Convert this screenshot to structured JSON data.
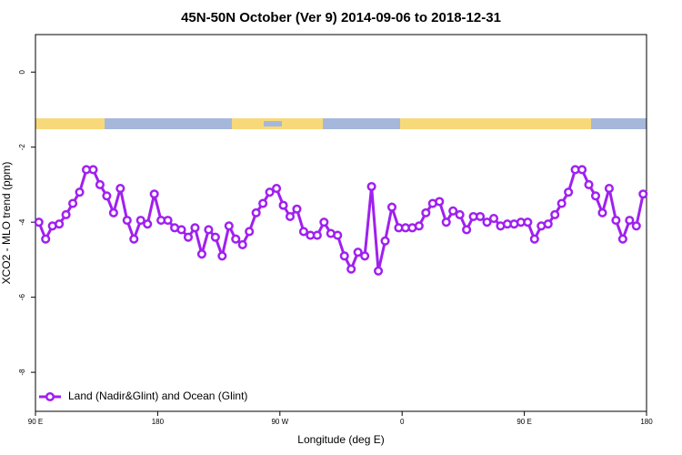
{
  "chart_data": {
    "type": "line",
    "title": "45N-50N October (Ver 9)   2014-09-06 to 2018-12-31",
    "x_label": "Longitude (deg E)",
    "y_label": "XCO2 - MLO trend (ppm)",
    "x": [
      92.5,
      97.5,
      102.5,
      107.5,
      112.5,
      117.5,
      122.5,
      127.5,
      132.5,
      137.5,
      142.5,
      147.5,
      152.5,
      157.5,
      162.5,
      167.5,
      172.5,
      177.5,
      182.5,
      187.5,
      192.5,
      197.5,
      202.5,
      207.5,
      212.5,
      217.5,
      222.5,
      227.5,
      232.5,
      237.5,
      242.5,
      247.5,
      252.5,
      257.5,
      262.5,
      267.5,
      272.5,
      277.5,
      282.5,
      287.5,
      292.5,
      297.5,
      302.5,
      307.5,
      312.5,
      317.5,
      322.5,
      327.5,
      332.5,
      337.5,
      342.5,
      347.5,
      352.5,
      357.5,
      362.5,
      367.5,
      372.5,
      377.5,
      382.5,
      387.5,
      392.5,
      397.5,
      402.5,
      407.5,
      412.5,
      417.5,
      422.5,
      427.5,
      432.5,
      437.5,
      442.5,
      447.5,
      452.5,
      457.5,
      462.5,
      467.5,
      472.5,
      477.5,
      482.5,
      487.5,
      492.5,
      497.5,
      502.5,
      507.5,
      512.5,
      517.5,
      522.5,
      527.5,
      532.5,
      537.5
    ],
    "series": [
      {
        "name": "Land (Nadir&Glint) and Ocean (Glint)",
        "color": "#a020f0",
        "values": [
          -4.0,
          -4.45,
          -4.1,
          -4.05,
          -3.8,
          -3.5,
          -3.2,
          -2.6,
          -2.6,
          -3.0,
          -3.3,
          -3.75,
          -3.1,
          -3.95,
          -4.45,
          -3.95,
          -4.05,
          -3.25,
          -3.95,
          -3.95,
          -4.15,
          -4.2,
          -4.4,
          -4.15,
          -4.85,
          -4.2,
          -4.4,
          -4.9,
          -4.1,
          -4.45,
          -4.6,
          -4.25,
          -3.75,
          -3.5,
          -3.2,
          -3.1,
          -3.55,
          -3.85,
          -3.65,
          -4.25,
          -4.35,
          -4.35,
          -4.0,
          -4.3,
          -4.35,
          -4.9,
          -5.25,
          -4.8,
          -4.9,
          -3.05,
          -5.3,
          -4.5,
          -3.6,
          -4.15,
          -4.15,
          -4.15,
          -4.1,
          -3.75,
          -3.5,
          -3.45,
          -4.0,
          -3.7,
          -3.8,
          -4.2,
          -3.85,
          -3.85,
          -4.0,
          -3.9,
          -4.1,
          -4.05,
          -4.05,
          -4.0,
          -4.0,
          -4.45,
          -4.1,
          -4.05,
          -3.8,
          -3.5,
          -3.2,
          -2.6,
          -2.6,
          -3.0,
          -3.3,
          -3.75,
          -3.1,
          -3.95,
          -4.45,
          -3.95,
          -4.1,
          -3.25
        ]
      }
    ],
    "xlim": [
      90,
      540
    ],
    "xticks": [
      {
        "value": 90,
        "label": "90 E"
      },
      180,
      {
        "value": 270,
        "label": "90 W"
      },
      {
        "value": 360,
        "label": "0"
      },
      {
        "value": 450,
        "label": "90 E"
      },
      {
        "value": 540,
        "label": "180"
      }
    ],
    "ylim": [
      -9.04,
      1.0
    ],
    "yticks": [
      0,
      -2,
      -4,
      -6,
      -8
    ],
    "legend": "bottom-left"
  }
}
